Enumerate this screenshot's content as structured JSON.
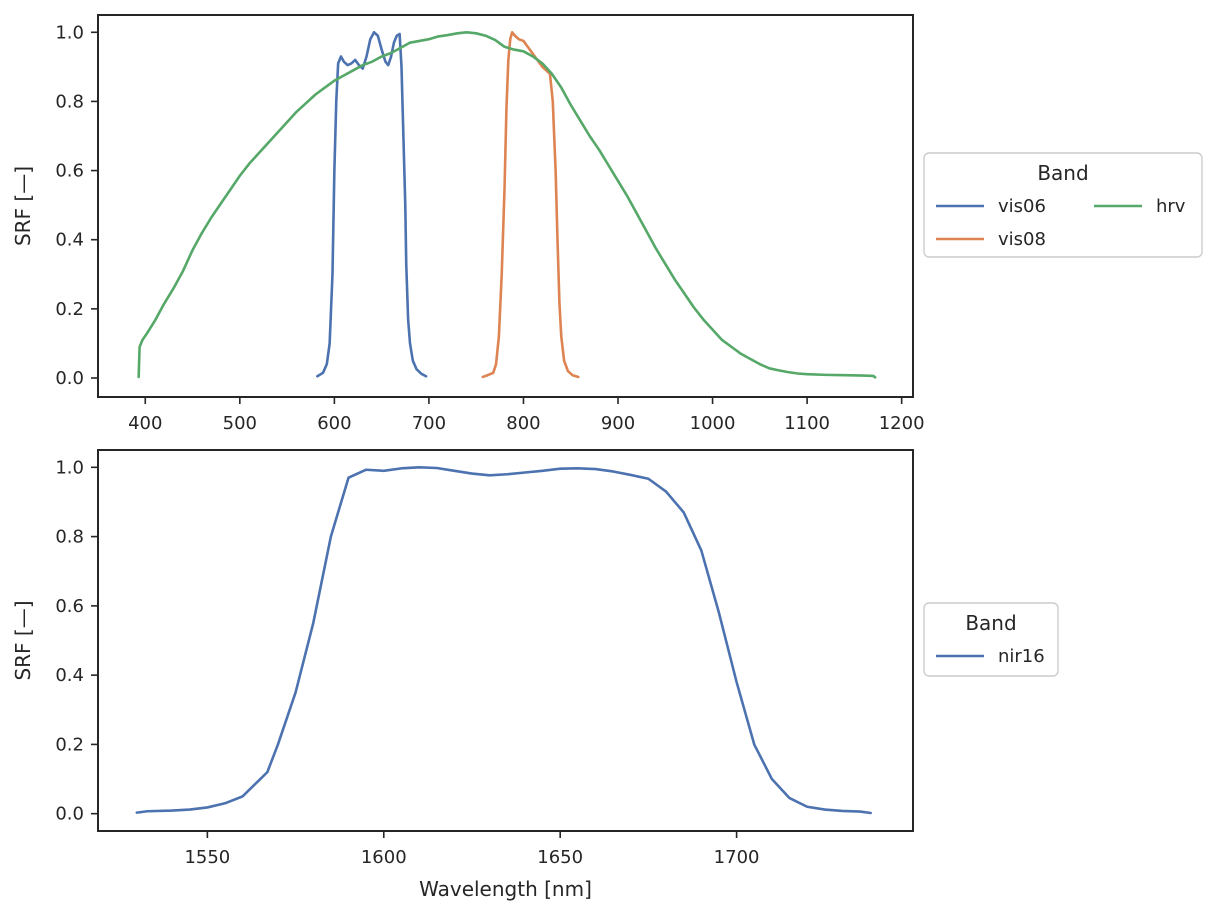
{
  "chart_data": [
    {
      "type": "line",
      "title": "",
      "xlabel": "",
      "ylabel": "SRF [—]",
      "xlim": [
        350,
        1212
      ],
      "ylim": [
        -0.055,
        1.05
      ],
      "xticks": [
        400,
        500,
        600,
        700,
        800,
        900,
        1000,
        1100,
        1200
      ],
      "xtick_labels": [
        "400",
        "500",
        "600",
        "700",
        "800",
        "900",
        "1000",
        "1100",
        "1200"
      ],
      "yticks": [
        0.0,
        0.2,
        0.4,
        0.6,
        0.8,
        1.0
      ],
      "ytick_labels": [
        "0.0",
        "0.2",
        "0.4",
        "0.6",
        "0.8",
        "1.0"
      ],
      "grid": false,
      "legend": {
        "title": "Band",
        "placement": "outside-right",
        "columns": 2
      },
      "series": [
        {
          "name": "vis06",
          "color": "#4c72b0",
          "points": [
            [
              582,
              0.005
            ],
            [
              588,
              0.015
            ],
            [
              592,
              0.04
            ],
            [
              595,
              0.1
            ],
            [
              598,
              0.3
            ],
            [
              600,
              0.6
            ],
            [
              602,
              0.8
            ],
            [
              604,
              0.91
            ],
            [
              607,
              0.93
            ],
            [
              610,
              0.915
            ],
            [
              614,
              0.905
            ],
            [
              618,
              0.91
            ],
            [
              622,
              0.92
            ],
            [
              626,
              0.905
            ],
            [
              630,
              0.895
            ],
            [
              634,
              0.93
            ],
            [
              638,
              0.98
            ],
            [
              642,
              1.0
            ],
            [
              646,
              0.99
            ],
            [
              650,
              0.95
            ],
            [
              654,
              0.915
            ],
            [
              657,
              0.905
            ],
            [
              660,
              0.93
            ],
            [
              663,
              0.97
            ],
            [
              666,
              0.99
            ],
            [
              669,
              0.995
            ],
            [
              671,
              0.9
            ],
            [
              673,
              0.7
            ],
            [
              675,
              0.5
            ],
            [
              676,
              0.33
            ],
            [
              678,
              0.17
            ],
            [
              680,
              0.1
            ],
            [
              683,
              0.05
            ],
            [
              687,
              0.025
            ],
            [
              692,
              0.012
            ],
            [
              697,
              0.005
            ]
          ]
        },
        {
          "name": "vis08",
          "color": "#dd8452",
          "points": [
            [
              757,
              0.003
            ],
            [
              762,
              0.008
            ],
            [
              768,
              0.015
            ],
            [
              771,
              0.04
            ],
            [
              774,
              0.12
            ],
            [
              777,
              0.3
            ],
            [
              780,
              0.55
            ],
            [
              782,
              0.78
            ],
            [
              784,
              0.92
            ],
            [
              786,
              0.98
            ],
            [
              788,
              1.0
            ],
            [
              791,
              0.99
            ],
            [
              795,
              0.98
            ],
            [
              800,
              0.975
            ],
            [
              804,
              0.96
            ],
            [
              808,
              0.945
            ],
            [
              812,
              0.93
            ],
            [
              816,
              0.915
            ],
            [
              820,
              0.9
            ],
            [
              824,
              0.89
            ],
            [
              828,
              0.88
            ],
            [
              831,
              0.8
            ],
            [
              834,
              0.6
            ],
            [
              836,
              0.4
            ],
            [
              838,
              0.22
            ],
            [
              840,
              0.12
            ],
            [
              843,
              0.05
            ],
            [
              847,
              0.02
            ],
            [
              852,
              0.008
            ],
            [
              858,
              0.003
            ]
          ]
        },
        {
          "name": "hrv",
          "color": "#55a868",
          "points": [
            [
              393,
              0.003
            ],
            [
              394,
              0.09
            ],
            [
              397,
              0.11
            ],
            [
              402,
              0.13
            ],
            [
              410,
              0.165
            ],
            [
              420,
              0.215
            ],
            [
              430,
              0.26
            ],
            [
              440,
              0.31
            ],
            [
              450,
              0.37
            ],
            [
              460,
              0.42
            ],
            [
              470,
              0.465
            ],
            [
              480,
              0.505
            ],
            [
              490,
              0.545
            ],
            [
              500,
              0.585
            ],
            [
              510,
              0.62
            ],
            [
              520,
              0.65
            ],
            [
              530,
              0.68
            ],
            [
              540,
              0.71
            ],
            [
              550,
              0.74
            ],
            [
              560,
              0.77
            ],
            [
              570,
              0.795
            ],
            [
              580,
              0.82
            ],
            [
              590,
              0.84
            ],
            [
              600,
              0.86
            ],
            [
              610,
              0.875
            ],
            [
              620,
              0.89
            ],
            [
              630,
              0.905
            ],
            [
              640,
              0.915
            ],
            [
              650,
              0.93
            ],
            [
              660,
              0.94
            ],
            [
              670,
              0.955
            ],
            [
              680,
              0.97
            ],
            [
              690,
              0.975
            ],
            [
              700,
              0.98
            ],
            [
              710,
              0.988
            ],
            [
              720,
              0.992
            ],
            [
              730,
              0.997
            ],
            [
              740,
              1.0
            ],
            [
              750,
              0.997
            ],
            [
              760,
              0.99
            ],
            [
              770,
              0.978
            ],
            [
              780,
              0.958
            ],
            [
              790,
              0.95
            ],
            [
              800,
              0.945
            ],
            [
              810,
              0.93
            ],
            [
              820,
              0.91
            ],
            [
              830,
              0.88
            ],
            [
              840,
              0.84
            ],
            [
              850,
              0.79
            ],
            [
              860,
              0.745
            ],
            [
              870,
              0.7
            ],
            [
              880,
              0.66
            ],
            [
              890,
              0.615
            ],
            [
              900,
              0.57
            ],
            [
              910,
              0.525
            ],
            [
              920,
              0.475
            ],
            [
              930,
              0.425
            ],
            [
              940,
              0.375
            ],
            [
              950,
              0.33
            ],
            [
              960,
              0.285
            ],
            [
              970,
              0.245
            ],
            [
              980,
              0.205
            ],
            [
              990,
              0.17
            ],
            [
              1000,
              0.14
            ],
            [
              1010,
              0.11
            ],
            [
              1020,
              0.09
            ],
            [
              1030,
              0.07
            ],
            [
              1040,
              0.055
            ],
            [
              1050,
              0.04
            ],
            [
              1060,
              0.028
            ],
            [
              1070,
              0.022
            ],
            [
              1080,
              0.017
            ],
            [
              1090,
              0.013
            ],
            [
              1100,
              0.011
            ],
            [
              1120,
              0.009
            ],
            [
              1140,
              0.008
            ],
            [
              1160,
              0.007
            ],
            [
              1170,
              0.006
            ],
            [
              1172,
              0.002
            ]
          ]
        }
      ]
    },
    {
      "type": "line",
      "title": "",
      "xlabel": "Wavelength [nm]",
      "ylabel": "SRF [—]",
      "xlim": [
        1519,
        1750
      ],
      "ylim": [
        -0.05,
        1.05
      ],
      "xticks": [
        1550,
        1600,
        1650,
        1700
      ],
      "xtick_labels": [
        "1550",
        "1600",
        "1650",
        "1700"
      ],
      "yticks": [
        0.0,
        0.2,
        0.4,
        0.6,
        0.8,
        1.0
      ],
      "ytick_labels": [
        "0.0",
        "0.2",
        "0.4",
        "0.6",
        "0.8",
        "1.0"
      ],
      "grid": false,
      "legend": {
        "title": "Band",
        "placement": "outside-right",
        "columns": 1
      },
      "series": [
        {
          "name": "nir16",
          "color": "#4c72b0",
          "points": [
            [
              1530,
              0.003
            ],
            [
              1533,
              0.007
            ],
            [
              1540,
              0.009
            ],
            [
              1545,
              0.012
            ],
            [
              1550,
              0.018
            ],
            [
              1555,
              0.03
            ],
            [
              1560,
              0.05
            ],
            [
              1565,
              0.1
            ],
            [
              1567,
              0.12
            ],
            [
              1570,
              0.2
            ],
            [
              1575,
              0.35
            ],
            [
              1580,
              0.55
            ],
            [
              1585,
              0.8
            ],
            [
              1590,
              0.97
            ],
            [
              1595,
              0.993
            ],
            [
              1600,
              0.99
            ],
            [
              1605,
              0.997
            ],
            [
              1610,
              1.0
            ],
            [
              1615,
              0.998
            ],
            [
              1620,
              0.99
            ],
            [
              1625,
              0.982
            ],
            [
              1630,
              0.977
            ],
            [
              1635,
              0.98
            ],
            [
              1640,
              0.985
            ],
            [
              1645,
              0.99
            ],
            [
              1650,
              0.996
            ],
            [
              1655,
              0.997
            ],
            [
              1660,
              0.995
            ],
            [
              1665,
              0.988
            ],
            [
              1670,
              0.978
            ],
            [
              1675,
              0.967
            ],
            [
              1680,
              0.93
            ],
            [
              1685,
              0.87
            ],
            [
              1690,
              0.76
            ],
            [
              1695,
              0.58
            ],
            [
              1700,
              0.38
            ],
            [
              1705,
              0.2
            ],
            [
              1710,
              0.1
            ],
            [
              1715,
              0.045
            ],
            [
              1720,
              0.02
            ],
            [
              1725,
              0.012
            ],
            [
              1730,
              0.008
            ],
            [
              1735,
              0.006
            ],
            [
              1738,
              0.002
            ]
          ]
        }
      ]
    }
  ]
}
